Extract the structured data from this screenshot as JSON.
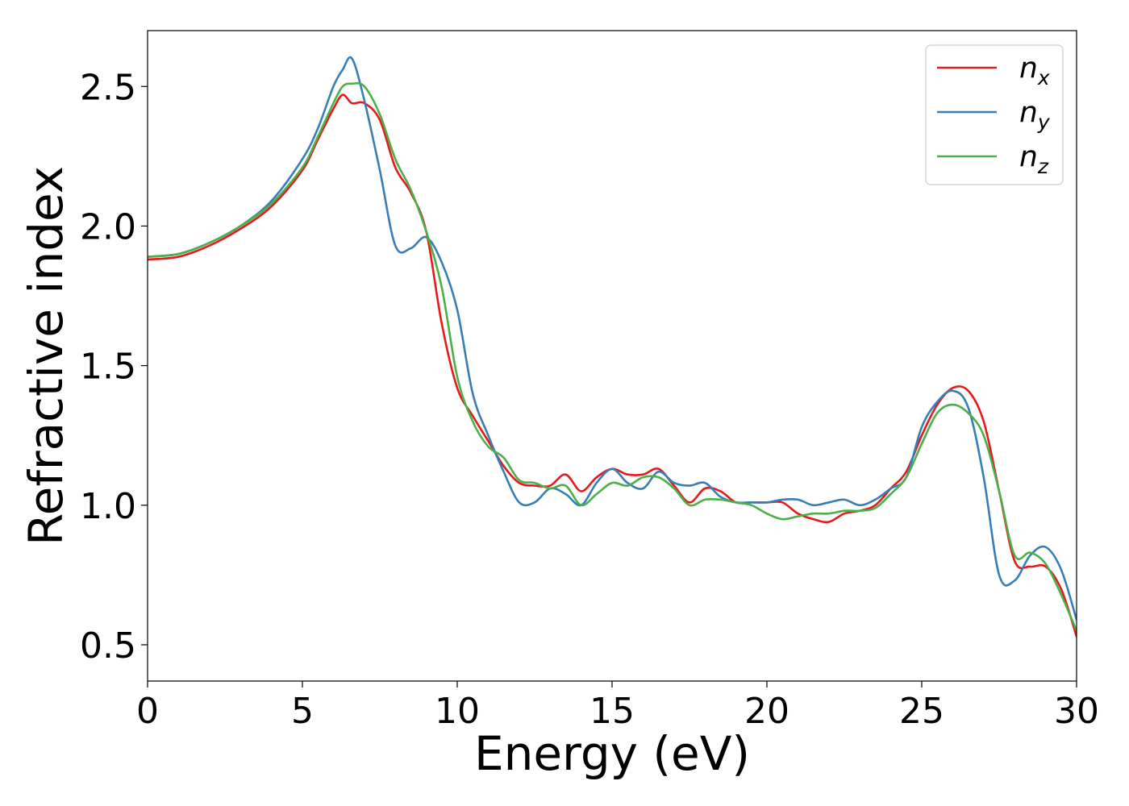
{
  "chart_data": {
    "type": "line",
    "xlabel": "Energy (eV)",
    "ylabel": "Refractive index",
    "xlim": [
      0,
      30
    ],
    "ylim": [
      0.37,
      2.7
    ],
    "xticks": [
      0,
      5,
      10,
      15,
      20,
      25,
      30
    ],
    "xtick_labels": [
      "0",
      "5",
      "10",
      "15",
      "20",
      "25",
      "30"
    ],
    "yticks": [
      0.5,
      1.0,
      1.5,
      2.0,
      2.5
    ],
    "ytick_labels": [
      "0.5",
      "1.0",
      "1.5",
      "2.0",
      "2.5"
    ],
    "grid": false,
    "legend_position": "top-right",
    "series": [
      {
        "name": "n",
        "subscript": "x",
        "color": "#e41a1c",
        "x": [
          0,
          1,
          2,
          3,
          4,
          5,
          5.5,
          6,
          6.3,
          6.6,
          7,
          7.5,
          8,
          8.5,
          9,
          9.5,
          10,
          10.5,
          11,
          11.5,
          12,
          12.5,
          13,
          13.5,
          14,
          14.5,
          15,
          15.5,
          16,
          16.5,
          17,
          17.5,
          18,
          18.5,
          19,
          19.5,
          20,
          20.5,
          21,
          21.5,
          22,
          22.5,
          23,
          23.5,
          24,
          24.5,
          25,
          25.5,
          26,
          26.5,
          27,
          27.5,
          28,
          28.5,
          29,
          29.5,
          30
        ],
        "y": [
          1.88,
          1.89,
          1.93,
          1.99,
          2.07,
          2.2,
          2.31,
          2.42,
          2.47,
          2.44,
          2.44,
          2.38,
          2.21,
          2.12,
          1.98,
          1.65,
          1.42,
          1.32,
          1.23,
          1.14,
          1.08,
          1.07,
          1.07,
          1.11,
          1.05,
          1.1,
          1.13,
          1.11,
          1.11,
          1.13,
          1.07,
          1.01,
          1.06,
          1.05,
          1.01,
          1.01,
          1.01,
          1.01,
          0.97,
          0.95,
          0.94,
          0.97,
          0.98,
          1.0,
          1.06,
          1.12,
          1.25,
          1.36,
          1.42,
          1.41,
          1.3,
          1.05,
          0.8,
          0.78,
          0.78,
          0.7,
          0.53
        ]
      },
      {
        "name": "n",
        "subscript": "y",
        "color": "#377eb8",
        "x": [
          0,
          1,
          2,
          3,
          4,
          5,
          5.5,
          6,
          6.3,
          6.6,
          7,
          7.5,
          8,
          8.5,
          9,
          9.5,
          10,
          10.5,
          11,
          11.5,
          12,
          12.5,
          13,
          13.5,
          14,
          14.5,
          15,
          15.5,
          16,
          16.5,
          17,
          17.5,
          18,
          18.5,
          19,
          19.5,
          20,
          20.5,
          21,
          21.5,
          22,
          22.5,
          23,
          23.5,
          24,
          24.5,
          25,
          25.5,
          26,
          26.5,
          27,
          27.5,
          28,
          28.5,
          29,
          29.5,
          30
        ],
        "y": [
          1.89,
          1.9,
          1.94,
          2.0,
          2.09,
          2.24,
          2.35,
          2.5,
          2.56,
          2.6,
          2.45,
          2.2,
          1.93,
          1.92,
          1.96,
          1.87,
          1.7,
          1.4,
          1.25,
          1.12,
          1.01,
          1.01,
          1.06,
          1.04,
          1.0,
          1.08,
          1.13,
          1.08,
          1.06,
          1.12,
          1.08,
          1.07,
          1.08,
          1.03,
          1.01,
          1.01,
          1.01,
          1.02,
          1.02,
          1.0,
          1.01,
          1.02,
          1.0,
          1.02,
          1.06,
          1.1,
          1.28,
          1.37,
          1.41,
          1.35,
          1.1,
          0.75,
          0.73,
          0.82,
          0.85,
          0.77,
          0.59
        ]
      },
      {
        "name": "n",
        "subscript": "z",
        "color": "#4daf4a",
        "x": [
          0,
          1,
          2,
          3,
          4,
          5,
          5.5,
          6,
          6.3,
          6.6,
          7,
          7.5,
          8,
          8.5,
          9,
          9.5,
          10,
          10.5,
          11,
          11.5,
          12,
          12.5,
          13,
          13.5,
          14,
          14.5,
          15,
          15.5,
          16,
          16.5,
          17,
          17.5,
          18,
          18.5,
          19,
          19.5,
          20,
          20.5,
          21,
          21.5,
          22,
          22.5,
          23,
          23.5,
          24,
          24.5,
          25,
          25.5,
          26,
          26.5,
          27,
          27.5,
          28,
          28.5,
          29,
          29.5,
          30
        ],
        "y": [
          1.89,
          1.9,
          1.94,
          2.0,
          2.08,
          2.21,
          2.32,
          2.44,
          2.5,
          2.51,
          2.5,
          2.4,
          2.24,
          2.13,
          1.98,
          1.78,
          1.46,
          1.3,
          1.21,
          1.17,
          1.09,
          1.08,
          1.06,
          1.07,
          1.0,
          1.04,
          1.08,
          1.07,
          1.1,
          1.1,
          1.06,
          1.0,
          1.02,
          1.02,
          1.01,
          1.0,
          0.97,
          0.95,
          0.96,
          0.97,
          0.97,
          0.98,
          0.98,
          0.99,
          1.04,
          1.1,
          1.22,
          1.33,
          1.36,
          1.33,
          1.25,
          1.05,
          0.82,
          0.83,
          0.79,
          0.68,
          0.55
        ]
      }
    ]
  }
}
